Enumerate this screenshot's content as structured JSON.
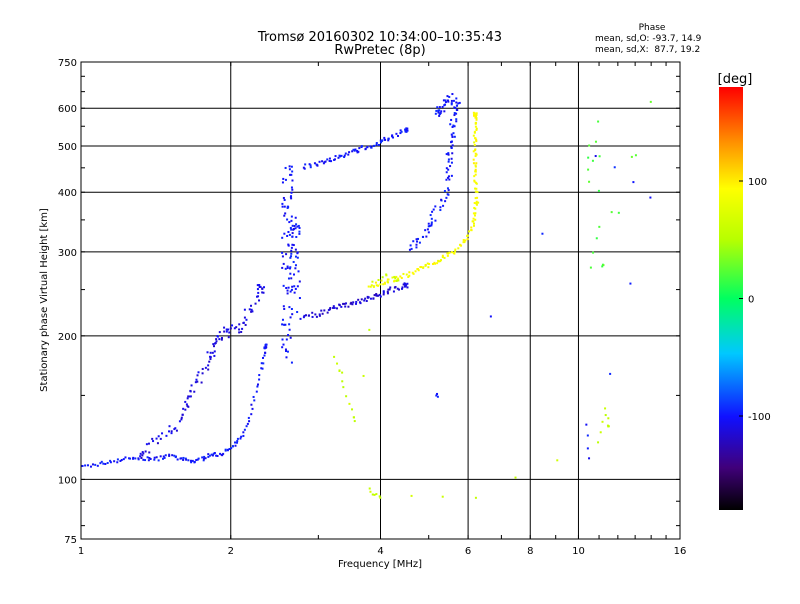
{
  "chart_data": {
    "type": "scatter",
    "title": "Tromsø 20160302 10:34:00–10:35:43",
    "subtitle": "RwPretec (8p)",
    "xlabel": "Frequency [MHz]",
    "ylabel": "Stationary phase Virtual Height [km]",
    "x_scale": "log",
    "y_scale": "log",
    "xlim": [
      1,
      16
    ],
    "ylim": [
      75,
      750
    ],
    "x_ticks": [
      1,
      2,
      4,
      6,
      8,
      10,
      16
    ],
    "x_tick_labels": [
      "1",
      "2",
      "4",
      "6",
      "8",
      "10",
      "16"
    ],
    "y_ticks": [
      75,
      100,
      200,
      300,
      400,
      500,
      600,
      750
    ],
    "y_tick_labels": [
      "75",
      "100",
      "200",
      "300",
      "400",
      "500",
      "600",
      "750"
    ],
    "grid": true,
    "phase_stats": {
      "heading": "Phase",
      "line_o": "mean, sd,O: -93.7, 14.9",
      "line_x": "mean, sd,X:  87.7, 19.2"
    },
    "colorbar": {
      "unit_label": "[deg]",
      "range": [
        -180,
        180
      ],
      "tick_values": [
        100,
        0,
        -100
      ],
      "tick_labels": [
        "100",
        "0",
        "-100"
      ]
    },
    "traces": [
      {
        "phase": -100,
        "spread": 0.012,
        "points": [
          [
            1.0,
            106
          ],
          [
            1.1,
            108
          ],
          [
            1.2,
            110
          ],
          [
            1.3,
            111
          ],
          [
            1.4,
            110
          ],
          [
            1.5,
            112
          ],
          [
            1.6,
            110
          ],
          [
            1.7,
            109
          ],
          [
            1.8,
            112
          ],
          [
            1.9,
            113
          ],
          [
            2.0,
            116
          ],
          [
            2.1,
            122
          ],
          [
            2.2,
            140
          ],
          [
            2.3,
            170
          ],
          [
            2.35,
            190
          ]
        ]
      },
      {
        "phase": -110,
        "spread": 0.03,
        "points": [
          [
            1.3,
            112
          ],
          [
            1.4,
            118
          ],
          [
            1.5,
            125
          ],
          [
            1.6,
            135
          ],
          [
            1.65,
            150
          ],
          [
            1.7,
            160
          ],
          [
            1.8,
            175
          ],
          [
            1.85,
            190
          ],
          [
            1.9,
            200
          ],
          [
            2.0,
            205
          ],
          [
            2.1,
            208
          ],
          [
            2.2,
            230
          ],
          [
            2.3,
            250
          ]
        ]
      },
      {
        "phase": -100,
        "spread": 0.05,
        "points": [
          [
            2.6,
            180
          ],
          [
            2.6,
            200
          ],
          [
            2.6,
            230
          ],
          [
            2.6,
            260
          ],
          [
            2.6,
            290
          ],
          [
            2.6,
            320
          ],
          [
            2.6,
            350
          ],
          [
            2.6,
            380
          ],
          [
            2.6,
            420
          ],
          [
            2.6,
            450
          ],
          [
            2.7,
            220
          ],
          [
            2.7,
            260
          ],
          [
            2.7,
            300
          ],
          [
            2.7,
            340
          ]
        ]
      },
      {
        "phase": -115,
        "spread": 0.015,
        "points": [
          [
            2.8,
            220
          ],
          [
            3.0,
            222
          ],
          [
            3.2,
            228
          ],
          [
            3.4,
            232
          ],
          [
            3.6,
            236
          ],
          [
            3.8,
            240
          ],
          [
            4.0,
            244
          ],
          [
            4.2,
            250
          ],
          [
            4.5,
            255
          ]
        ]
      },
      {
        "phase": -100,
        "spread": 0.015,
        "points": [
          [
            2.8,
            450
          ],
          [
            3.0,
            460
          ],
          [
            3.2,
            470
          ],
          [
            3.4,
            480
          ],
          [
            3.6,
            490
          ],
          [
            3.8,
            500
          ],
          [
            4.0,
            510
          ],
          [
            4.2,
            520
          ],
          [
            4.5,
            540
          ]
        ]
      },
      {
        "phase": -100,
        "spread": 0.03,
        "points": [
          [
            4.6,
            300
          ],
          [
            4.8,
            320
          ],
          [
            5.0,
            340
          ],
          [
            5.2,
            370
          ],
          [
            5.4,
            400
          ],
          [
            5.5,
            440
          ],
          [
            5.5,
            480
          ],
          [
            5.6,
            520
          ],
          [
            5.6,
            560
          ],
          [
            5.7,
            600
          ],
          [
            5.6,
            630
          ],
          [
            5.4,
            610
          ],
          [
            5.2,
            590
          ]
        ]
      },
      {
        "phase": 90,
        "spread": 0.015,
        "points": [
          [
            3.8,
            255
          ],
          [
            4.0,
            258
          ],
          [
            4.2,
            262
          ],
          [
            4.5,
            268
          ],
          [
            4.8,
            275
          ],
          [
            5.0,
            282
          ],
          [
            5.3,
            290
          ],
          [
            5.6,
            300
          ],
          [
            5.9,
            315
          ],
          [
            6.1,
            335
          ],
          [
            6.2,
            360
          ],
          [
            6.25,
            390
          ],
          [
            6.2,
            420
          ],
          [
            6.2,
            460
          ],
          [
            6.2,
            500
          ],
          [
            6.2,
            540
          ],
          [
            6.2,
            580
          ]
        ]
      },
      {
        "phase": 60,
        "spread": 0.03,
        "points": [
          [
            3.2,
            180
          ],
          [
            3.3,
            170
          ],
          [
            3.4,
            155
          ],
          [
            3.5,
            140
          ],
          [
            3.6,
            130
          ],
          [
            3.9,
            260
          ],
          [
            4.1,
            270
          ],
          [
            4.3,
            262
          ]
        ]
      },
      {
        "phase": 60,
        "spread": 0.01,
        "points": [
          [
            3.8,
            95
          ],
          [
            3.9,
            93
          ],
          [
            4.0,
            92
          ],
          [
            6.2,
            92
          ],
          [
            11.0,
            120
          ],
          [
            11.3,
            140
          ],
          [
            11.5,
            130
          ]
        ]
      },
      {
        "phase": 20,
        "spread": 0.01,
        "points": [
          [
            10.5,
            500
          ],
          [
            10.5,
            420
          ],
          [
            11.0,
            560
          ],
          [
            11.0,
            340
          ],
          [
            10.6,
            280
          ],
          [
            14.0,
            620
          ],
          [
            11.2,
            280
          ]
        ]
      },
      {
        "phase": -100,
        "spread": 0.01,
        "points": [
          [
            10.4,
            130
          ],
          [
            10.5,
            110
          ],
          [
            14.0,
            390
          ],
          [
            10.8,
            480
          ],
          [
            5.2,
            150
          ]
        ]
      }
    ]
  }
}
